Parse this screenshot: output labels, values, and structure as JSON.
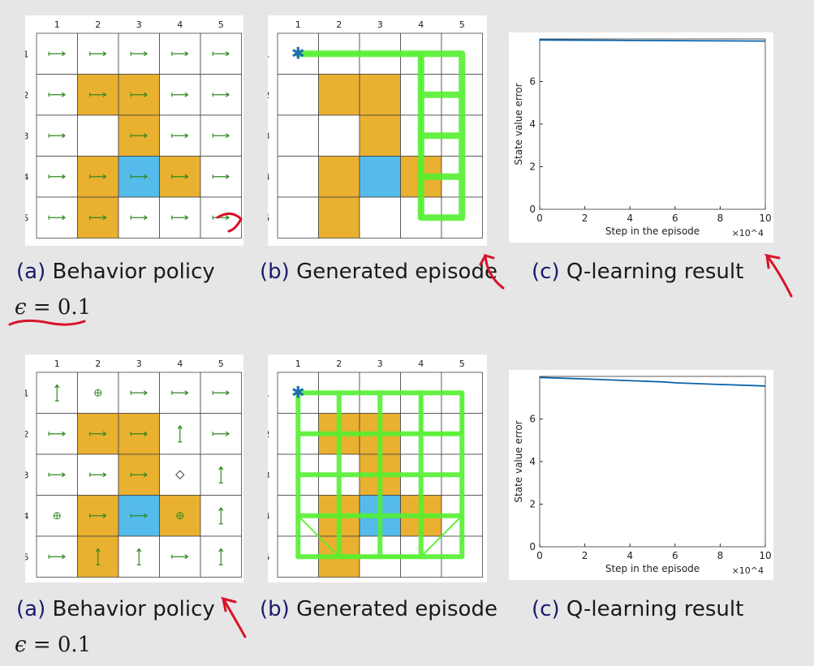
{
  "col_labels": [
    "1",
    "2",
    "3",
    "4",
    "5"
  ],
  "row_labels": [
    "1",
    "2",
    "3",
    "4",
    "5"
  ],
  "colors": {
    "obstacle": "#eab02f",
    "target": "#54bbea",
    "arrow": "#2f8a1f",
    "episode": "#55f030",
    "error_line": "#0a62a8",
    "marker": "#1a6fb0",
    "caption_label": "#1a1a6e",
    "annotation": "#d8132a"
  },
  "grid": {
    "obstacles": [
      [
        2,
        2
      ],
      [
        2,
        3
      ],
      [
        3,
        3
      ],
      [
        4,
        2
      ],
      [
        4,
        4
      ],
      [
        5,
        2
      ]
    ],
    "target": [
      4,
      3
    ]
  },
  "top": {
    "policy": [
      [
        "right",
        "right",
        "right",
        "right",
        "right"
      ],
      [
        "right",
        "right",
        "right",
        "right",
        "right"
      ],
      [
        "right",
        "",
        "right",
        "right",
        "right"
      ],
      [
        "right",
        "right",
        "right",
        "right",
        "right"
      ],
      [
        "right",
        "right",
        "right",
        "right",
        "right"
      ]
    ],
    "captions": {
      "a_label": "(a)",
      "a_text": "Behavior policy",
      "b_label": "(b)",
      "b_text": "Generated episode",
      "c_label": "(c)",
      "c_text": "Q-learning result"
    },
    "epsilon_symbol": "ϵ",
    "epsilon_value": "= 0.1"
  },
  "bottom": {
    "policy": [
      [
        "updown",
        "stay",
        "right",
        "right",
        "right"
      ],
      [
        "right",
        "right",
        "right",
        "updown",
        "right"
      ],
      [
        "right",
        "right",
        "right",
        "diamond",
        "updown"
      ],
      [
        "stay",
        "right",
        "right",
        "stay",
        "updown"
      ],
      [
        "right",
        "updown",
        "updown",
        "right",
        "updown"
      ]
    ],
    "captions": {
      "a_label": "(a)",
      "a_text": "Behavior policy",
      "b_label": "(b)",
      "b_text": "Generated episode",
      "c_label": "(c)",
      "c_text": "Q-learning result"
    },
    "epsilon_symbol": "ϵ",
    "epsilon_value": "= 0.1"
  },
  "chart_data": [
    {
      "type": "line",
      "title": "",
      "xlabel": "Step in the episode",
      "ylabel": "State value error",
      "x_multiplier": "×10^4",
      "xlim": [
        0,
        10
      ],
      "ylim": [
        0,
        8
      ],
      "xticks": [
        0,
        2,
        4,
        6,
        8,
        10
      ],
      "yticks": [
        0,
        2,
        4,
        6
      ],
      "series": [
        {
          "x": [
            0,
            2,
            4,
            6,
            8,
            10
          ],
          "y": [
            7.95,
            7.94,
            7.93,
            7.92,
            7.91,
            7.9
          ]
        }
      ]
    },
    {
      "type": "line",
      "title": "",
      "xlabel": "Step in the episode",
      "ylabel": "State value error",
      "x_multiplier": "×10^4",
      "xlim": [
        0,
        10
      ],
      "ylim": [
        0,
        8
      ],
      "xticks": [
        0,
        2,
        4,
        6,
        8,
        10
      ],
      "yticks": [
        0,
        2,
        4,
        6
      ],
      "series": [
        {
          "x": [
            0,
            2,
            4,
            5.5,
            6,
            8,
            10
          ],
          "y": [
            7.95,
            7.88,
            7.8,
            7.74,
            7.7,
            7.62,
            7.55
          ]
        }
      ]
    }
  ]
}
